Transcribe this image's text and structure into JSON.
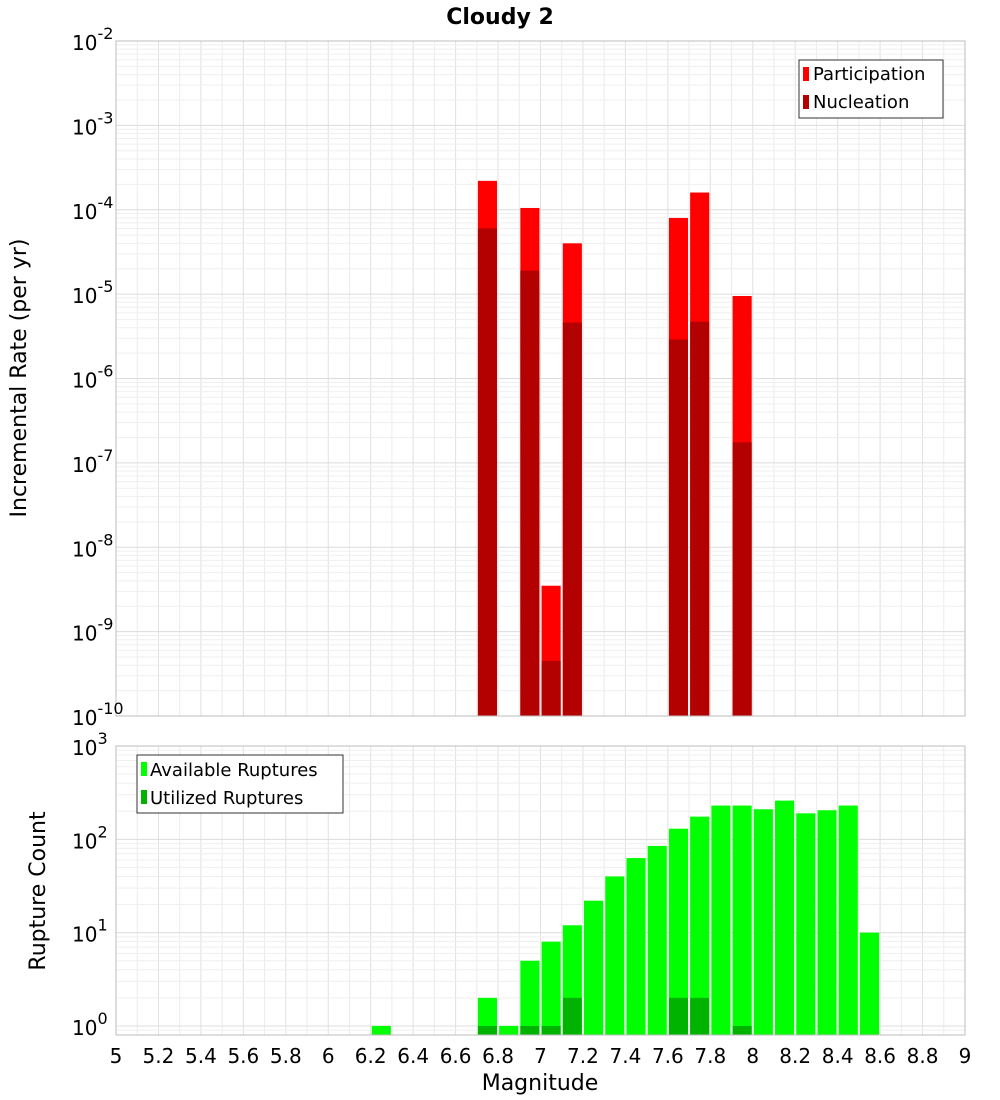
{
  "chart_data": [
    {
      "type": "bar",
      "title": "Cloudy 2",
      "ylabel": "Incremental Rate (per yr)",
      "xlabel": "",
      "y_scale": "log",
      "ylim": [
        1e-10,
        0.01
      ],
      "xlim": [
        5,
        9
      ],
      "grid": true,
      "legend_position": "top-right",
      "y_tick_labels": [
        {
          "base": "10",
          "exp": "-10"
        },
        {
          "base": "10",
          "exp": "-9"
        },
        {
          "base": "10",
          "exp": "-8"
        },
        {
          "base": "10",
          "exp": "-7"
        },
        {
          "base": "10",
          "exp": "-6"
        },
        {
          "base": "10",
          "exp": "-5"
        },
        {
          "base": "10",
          "exp": "-4"
        },
        {
          "base": "10",
          "exp": "-3"
        },
        {
          "base": "10",
          "exp": "-2"
        }
      ],
      "series": [
        {
          "name": "Participation",
          "color": "#ff0000",
          "x": [
            6.75,
            6.95,
            7.05,
            7.15,
            7.65,
            7.75,
            7.95
          ],
          "values": [
            0.00022,
            0.000105,
            3.5e-09,
            4e-05,
            8e-05,
            0.00016,
            9.5e-06
          ]
        },
        {
          "name": "Nucleation",
          "color": "#b30000",
          "x": [
            6.75,
            6.95,
            7.05,
            7.15,
            7.65,
            7.75,
            7.95
          ],
          "values": [
            6e-05,
            1.9e-05,
            4.5e-10,
            4.6e-06,
            2.9e-06,
            4.7e-06,
            1.75e-07
          ]
        }
      ]
    },
    {
      "type": "bar",
      "title": "",
      "ylabel": "Rupture Count",
      "xlabel": "Magnitude",
      "y_scale": "log",
      "ylim": [
        0.8,
        1000
      ],
      "xlim": [
        5,
        9
      ],
      "grid": true,
      "legend_position": "top-left",
      "x_ticks": [
        "5",
        "5.2",
        "5.4",
        "5.6",
        "5.8",
        "6",
        "6.2",
        "6.4",
        "6.6",
        "6.8",
        "7",
        "7.2",
        "7.4",
        "7.6",
        "7.8",
        "8",
        "8.2",
        "8.4",
        "8.6",
        "8.8",
        "9"
      ],
      "y_tick_labels": [
        {
          "base": "10",
          "exp": "0"
        },
        {
          "base": "10",
          "exp": "1"
        },
        {
          "base": "10",
          "exp": "2"
        },
        {
          "base": "10",
          "exp": "3"
        }
      ],
      "series": [
        {
          "name": "Available Ruptures",
          "color": "#00ff00",
          "x": [
            6.25,
            6.75,
            6.85,
            6.95,
            7.05,
            7.15,
            7.25,
            7.35,
            7.45,
            7.55,
            7.65,
            7.75,
            7.85,
            7.95,
            8.05,
            8.15,
            8.25,
            8.35,
            8.45,
            8.55
          ],
          "values": [
            1,
            2,
            1,
            5,
            8,
            12,
            22,
            40,
            63,
            85,
            130,
            175,
            230,
            230,
            210,
            260,
            190,
            205,
            230,
            10
          ]
        },
        {
          "name": "Utilized Ruptures",
          "color": "#00b300",
          "x": [
            6.75,
            6.95,
            7.05,
            7.15,
            7.65,
            7.75,
            7.95
          ],
          "values": [
            1,
            1,
            1,
            2,
            2,
            2,
            1
          ]
        }
      ]
    }
  ]
}
